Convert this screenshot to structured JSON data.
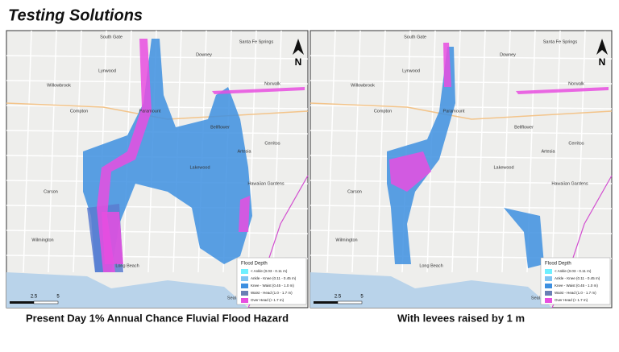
{
  "header": {
    "title": "Testing Solutions"
  },
  "maps": [
    {
      "caption": "Present Day 1% Annual Chance Fluvial Flood Hazard",
      "north": "N",
      "places": [
        "South Gate",
        "Downey",
        "Santa Fe Springs",
        "Lynwood",
        "Willowbrook",
        "Compton",
        "Norwalk",
        "Paramount",
        "Bellflower",
        "Cerritos",
        "Artesia",
        "Lakewood",
        "Carson",
        "Hawaiian Gardens",
        "Wilmington",
        "Long Beach",
        "Seal Beach"
      ],
      "legend": {
        "title": "Flood Depth",
        "items": [
          "< Ankle (0.03 - 0.11 m)",
          "Ankle - Knee (0.11 - 0.45 m)",
          "Knee - Waist (0.45 - 1.0 m)",
          "Waist - Head (1.0 - 1.7 m)",
          "Over Head (> 1.7 m)"
        ]
      },
      "scale": [
        "2.5",
        "5"
      ]
    },
    {
      "caption": "With levees raised by 1 m",
      "north": "N",
      "places": [
        "South Gate",
        "Downey",
        "Santa Fe Springs",
        "Lynwood",
        "Willowbrook",
        "Compton",
        "Norwalk",
        "Paramount",
        "Bellflower",
        "Cerritos",
        "Artesia",
        "Lakewood",
        "Carson",
        "Hawaiian Gardens",
        "Wilmington",
        "Long Beach",
        "Seal Beach"
      ],
      "legend": {
        "title": "Flood Depth",
        "items": [
          "< Ankle (0.03 - 0.11 m)",
          "Ankle - Knee (0.11 - 0.45 m)",
          "Knee - Waist (0.45 - 1.0 m)",
          "Waist - Head (1.0 - 1.7 m)",
          "Over Head (> 1.7 m)"
        ]
      },
      "scale": [
        "2.5",
        "5"
      ]
    }
  ]
}
